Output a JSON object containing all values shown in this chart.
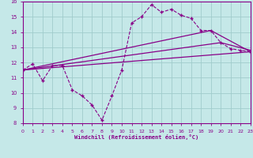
{
  "bg_color": "#c5e8e8",
  "line_color": "#880088",
  "grid_color": "#a0cccc",
  "xlabel": "Windchill (Refroidissement éolien,°C)",
  "xlim": [
    0,
    23
  ],
  "ylim": [
    8,
    16
  ],
  "yticks": [
    8,
    9,
    10,
    11,
    12,
    13,
    14,
    15,
    16
  ],
  "xticks": [
    0,
    1,
    2,
    3,
    4,
    5,
    6,
    7,
    8,
    9,
    10,
    11,
    12,
    13,
    14,
    15,
    16,
    17,
    18,
    19,
    20,
    21,
    22,
    23
  ],
  "series1_x": [
    0,
    1,
    2,
    3,
    4,
    5,
    6,
    7,
    8,
    9,
    10,
    11,
    12,
    13,
    14,
    15,
    16,
    17,
    18,
    19,
    20,
    21,
    22,
    23
  ],
  "series1_y": [
    11.5,
    11.9,
    10.8,
    11.8,
    11.8,
    10.2,
    9.8,
    9.2,
    8.2,
    9.8,
    11.5,
    14.6,
    15.0,
    15.8,
    15.3,
    15.5,
    15.1,
    14.9,
    14.1,
    14.1,
    13.3,
    12.9,
    12.8,
    12.7
  ],
  "series2_x": [
    0,
    23
  ],
  "series2_y": [
    11.5,
    12.7
  ],
  "series3_x": [
    0,
    20,
    23
  ],
  "series3_y": [
    11.5,
    13.3,
    12.8
  ],
  "series4_x": [
    0,
    19,
    23
  ],
  "series4_y": [
    11.5,
    14.1,
    12.7
  ],
  "spine_color": "#880088"
}
